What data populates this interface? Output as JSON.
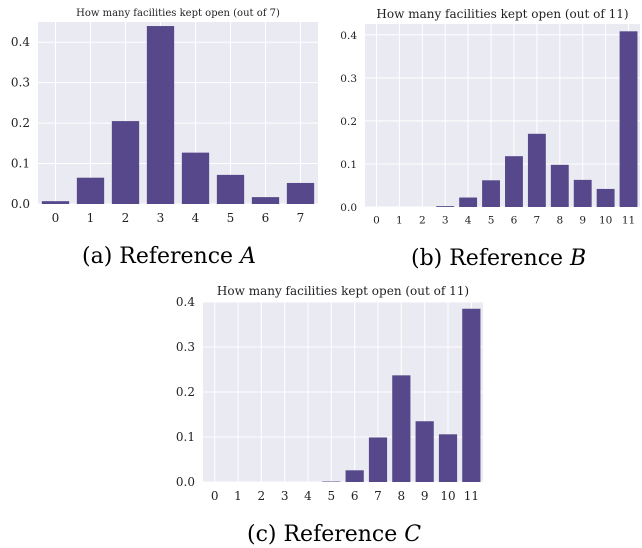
{
  "chart_data": [
    {
      "id": "A",
      "type": "bar",
      "title": "How many facilities kept open (out of 7)",
      "categories": [
        "0",
        "1",
        "2",
        "3",
        "4",
        "5",
        "6",
        "7"
      ],
      "values": [
        0.007,
        0.065,
        0.205,
        0.44,
        0.127,
        0.072,
        0.017,
        0.052
      ],
      "ylim": [
        0,
        0.45
      ],
      "yticks": [
        "0.0",
        "0.1",
        "0.2",
        "0.3",
        "0.4"
      ],
      "ytick_values": [
        0,
        0.1,
        0.2,
        0.3,
        0.4
      ],
      "grid": true,
      "color": "#56488a",
      "background": "#eaeaf2",
      "caption_prefix": "(a) Reference ",
      "caption_var": "A"
    },
    {
      "id": "B",
      "type": "bar",
      "title": "How many facilities kept open (out of 11)",
      "categories": [
        "0",
        "1",
        "2",
        "3",
        "4",
        "5",
        "6",
        "7",
        "8",
        "9",
        "10",
        "11"
      ],
      "values": [
        0.0,
        0.0,
        0.0,
        0.002,
        0.022,
        0.062,
        0.118,
        0.17,
        0.098,
        0.063,
        0.042,
        0.408
      ],
      "ylim": [
        0,
        0.425
      ],
      "yticks": [
        "0.0",
        "0.1",
        "0.2",
        "0.3",
        "0.4"
      ],
      "ytick_values": [
        0,
        0.1,
        0.2,
        0.3,
        0.4
      ],
      "grid": true,
      "color": "#56488a",
      "background": "#eaeaf2",
      "caption_prefix": "(b) Reference ",
      "caption_var": "B"
    },
    {
      "id": "C",
      "type": "bar",
      "title": "How many facilities kept open (out of 11)",
      "categories": [
        "0",
        "1",
        "2",
        "3",
        "4",
        "5",
        "6",
        "7",
        "8",
        "9",
        "10",
        "11"
      ],
      "values": [
        0.0,
        0.0,
        0.0,
        0.0,
        0.0,
        0.001,
        0.026,
        0.099,
        0.237,
        0.135,
        0.106,
        0.385
      ],
      "ylim": [
        0,
        0.4
      ],
      "yticks": [
        "0.0",
        "0.1",
        "0.2",
        "0.3",
        "0.4"
      ],
      "ytick_values": [
        0,
        0.1,
        0.2,
        0.3,
        0.4
      ],
      "grid": true,
      "color": "#56488a",
      "background": "#eaeaf2",
      "caption_prefix": "(c) Reference ",
      "caption_var": "C"
    }
  ]
}
